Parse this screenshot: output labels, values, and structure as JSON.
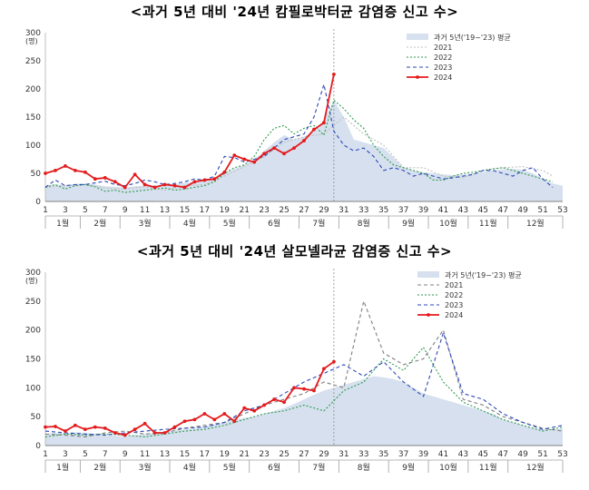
{
  "charts": [
    {
      "title": "<과거 5년 대비 '24년 캄필로박터균 감염증 신고 수>"
    },
    {
      "title": "<과거 5년 대비 '24년 살모넬라균 감염증 신고 수>"
    }
  ],
  "chart_data": [
    {
      "type": "line",
      "title": "<과거 5년 대비 '24년 캄필로박터균 감염증 신고 수>",
      "ylabel": "(명)",
      "ylim": [
        0,
        300
      ],
      "yticks": [
        0,
        50,
        100,
        150,
        200,
        250,
        300
      ],
      "xlim": [
        1,
        53
      ],
      "xticks": [
        1,
        3,
        5,
        7,
        9,
        11,
        13,
        15,
        17,
        19,
        21,
        23,
        25,
        27,
        29,
        31,
        33,
        35,
        37,
        39,
        41,
        43,
        45,
        47,
        49,
        51,
        53
      ],
      "months": [
        {
          "label": "1월",
          "start": 1,
          "end": 4.5
        },
        {
          "label": "2월",
          "start": 4.5,
          "end": 8.5
        },
        {
          "label": "3월",
          "start": 8.5,
          "end": 13.5
        },
        {
          "label": "4월",
          "start": 13.5,
          "end": 17.5
        },
        {
          "label": "5월",
          "start": 17.5,
          "end": 21.5
        },
        {
          "label": "6월",
          "start": 21.5,
          "end": 26.5
        },
        {
          "label": "7월",
          "start": 26.5,
          "end": 30.5
        },
        {
          "label": "8월",
          "start": 30.5,
          "end": 35.5
        },
        {
          "label": "9월",
          "start": 35.5,
          "end": 39.5
        },
        {
          "label": "10월",
          "start": 39.5,
          "end": 43.5
        },
        {
          "label": "11월",
          "start": 43.5,
          "end": 47.5
        },
        {
          "label": "12월",
          "start": 47.5,
          "end": 53
        }
      ],
      "current_week": 30,
      "grid": false,
      "legend_position": "top-right",
      "series": [
        {
          "name": "과거 5년('19~'23) 평균",
          "kind": "area",
          "color": "#d6e0ee",
          "x": [
            1,
            2,
            3,
            4,
            5,
            6,
            7,
            8,
            9,
            10,
            11,
            12,
            13,
            14,
            15,
            16,
            17,
            18,
            19,
            20,
            21,
            22,
            23,
            24,
            25,
            26,
            27,
            28,
            29,
            30,
            31,
            32,
            33,
            34,
            35,
            36,
            37,
            38,
            39,
            40,
            41,
            42,
            43,
            44,
            45,
            46,
            47,
            48,
            49,
            50,
            51,
            52,
            53
          ],
          "values": [
            28,
            30,
            29,
            31,
            32,
            30,
            27,
            26,
            25,
            27,
            28,
            29,
            30,
            31,
            33,
            35,
            37,
            42,
            50,
            58,
            65,
            75,
            90,
            105,
            118,
            110,
            115,
            125,
            145,
            180,
            150,
            110,
            105,
            100,
            95,
            78,
            60,
            55,
            52,
            50,
            48,
            47,
            48,
            50,
            52,
            55,
            57,
            58,
            56,
            50,
            40,
            32,
            28
          ]
        },
        {
          "name": "2021",
          "kind": "line",
          "color": "#bfbfbf",
          "dash": "2,2",
          "x": [
            1,
            3,
            5,
            7,
            9,
            11,
            13,
            15,
            17,
            19,
            21,
            23,
            25,
            27,
            29,
            31,
            33,
            35,
            37,
            39,
            41,
            43,
            45,
            47,
            49,
            51,
            52
          ],
          "values": [
            25,
            28,
            30,
            24,
            22,
            26,
            20,
            28,
            30,
            45,
            62,
            80,
            105,
            115,
            120,
            150,
            120,
            100,
            60,
            60,
            45,
            42,
            55,
            60,
            62,
            55,
            45
          ]
        },
        {
          "name": "2022",
          "kind": "line",
          "color": "#2e9a50",
          "dash": "2,2",
          "x": [
            1,
            2,
            3,
            4,
            5,
            6,
            7,
            8,
            9,
            10,
            11,
            12,
            13,
            14,
            15,
            16,
            17,
            18,
            19,
            20,
            21,
            22,
            23,
            24,
            25,
            26,
            27,
            28,
            29,
            30,
            31,
            32,
            33,
            34,
            35,
            36,
            37,
            38,
            39,
            40,
            41,
            42,
            43,
            44,
            45,
            46,
            47,
            48,
            49,
            50,
            51,
            52
          ],
          "values": [
            25,
            30,
            22,
            28,
            30,
            26,
            18,
            20,
            16,
            18,
            20,
            22,
            24,
            20,
            22,
            25,
            28,
            35,
            50,
            60,
            65,
            80,
            110,
            130,
            135,
            120,
            130,
            135,
            118,
            180,
            165,
            145,
            130,
            100,
            80,
            65,
            60,
            55,
            50,
            38,
            38,
            45,
            50,
            52,
            55,
            58,
            60,
            55,
            50,
            45,
            40,
            35
          ]
        },
        {
          "name": "2023",
          "kind": "line",
          "color": "#2b47b8",
          "dash": "4,3",
          "x": [
            1,
            2,
            3,
            4,
            5,
            6,
            7,
            8,
            9,
            10,
            11,
            12,
            13,
            14,
            15,
            16,
            17,
            18,
            19,
            20,
            21,
            22,
            23,
            24,
            25,
            26,
            27,
            28,
            29,
            30,
            31,
            32,
            33,
            34,
            35,
            36,
            37,
            38,
            39,
            40,
            41,
            42,
            43,
            44,
            45,
            46,
            47,
            48,
            49,
            50,
            51,
            52
          ],
          "values": [
            25,
            38,
            28,
            30,
            30,
            33,
            36,
            30,
            28,
            32,
            38,
            35,
            30,
            32,
            35,
            40,
            38,
            45,
            80,
            78,
            70,
            75,
            80,
            95,
            110,
            115,
            120,
            150,
            208,
            125,
            100,
            90,
            95,
            80,
            55,
            60,
            55,
            45,
            50,
            45,
            40,
            42,
            45,
            48,
            55,
            55,
            50,
            45,
            55,
            60,
            40,
            25
          ]
        },
        {
          "name": "2024",
          "kind": "line",
          "color": "#e41a1c",
          "marker": true,
          "x": [
            1,
            2,
            3,
            4,
            5,
            6,
            7,
            8,
            9,
            10,
            11,
            12,
            13,
            14,
            15,
            16,
            17,
            18,
            19,
            20,
            21,
            22,
            23,
            24,
            25,
            26,
            27,
            28,
            29,
            30
          ],
          "values": [
            50,
            55,
            63,
            55,
            52,
            40,
            42,
            35,
            25,
            48,
            30,
            25,
            30,
            28,
            25,
            35,
            38,
            40,
            52,
            82,
            75,
            70,
            85,
            95,
            85,
            95,
            108,
            128,
            140,
            226
          ]
        }
      ]
    },
    {
      "type": "line",
      "title": "<과거 5년 대비 '24년 살모넬라균 감염증 신고 수>",
      "ylabel": "(명)",
      "ylim": [
        0,
        300
      ],
      "yticks": [
        0,
        50,
        100,
        150,
        200,
        250,
        300
      ],
      "xlim": [
        1,
        53
      ],
      "xticks": [
        1,
        3,
        5,
        7,
        9,
        11,
        13,
        15,
        17,
        19,
        21,
        23,
        25,
        27,
        29,
        31,
        33,
        35,
        37,
        39,
        41,
        43,
        45,
        47,
        49,
        51,
        53
      ],
      "months": [
        {
          "label": "1월",
          "start": 1,
          "end": 4.5
        },
        {
          "label": "2월",
          "start": 4.5,
          "end": 8.5
        },
        {
          "label": "3월",
          "start": 8.5,
          "end": 13.5
        },
        {
          "label": "4월",
          "start": 13.5,
          "end": 17.5
        },
        {
          "label": "5월",
          "start": 17.5,
          "end": 21.5
        },
        {
          "label": "6월",
          "start": 21.5,
          "end": 26.5
        },
        {
          "label": "7월",
          "start": 26.5,
          "end": 30.5
        },
        {
          "label": "8월",
          "start": 30.5,
          "end": 35.5
        },
        {
          "label": "9월",
          "start": 35.5,
          "end": 39.5
        },
        {
          "label": "10월",
          "start": 39.5,
          "end": 43.5
        },
        {
          "label": "11월",
          "start": 43.5,
          "end": 47.5
        },
        {
          "label": "12월",
          "start": 47.5,
          "end": 53
        }
      ],
      "current_week": 30,
      "grid": false,
      "legend_position": "top-right",
      "series": [
        {
          "name": "과거 5년('19~'23) 평균",
          "kind": "area",
          "color": "#d6e0ee",
          "x": [
            1,
            2,
            3,
            4,
            5,
            6,
            7,
            8,
            9,
            10,
            11,
            12,
            13,
            14,
            15,
            16,
            17,
            18,
            19,
            20,
            21,
            22,
            23,
            24,
            25,
            26,
            27,
            28,
            29,
            30,
            31,
            32,
            33,
            34,
            35,
            36,
            37,
            38,
            39,
            40,
            41,
            42,
            43,
            44,
            45,
            46,
            47,
            48,
            49,
            50,
            51,
            52,
            53
          ],
          "values": [
            20,
            22,
            21,
            23,
            22,
            20,
            18,
            17,
            16,
            18,
            20,
            22,
            24,
            26,
            28,
            30,
            33,
            36,
            40,
            45,
            48,
            50,
            55,
            60,
            65,
            72,
            80,
            88,
            95,
            100,
            105,
            110,
            115,
            120,
            118,
            115,
            110,
            100,
            90,
            85,
            80,
            75,
            70,
            65,
            60,
            55,
            45,
            40,
            35,
            30,
            28,
            27,
            30
          ]
        },
        {
          "name": "2021",
          "kind": "line",
          "color": "#7f7f7f",
          "dash": "4,3",
          "x": [
            1,
            3,
            5,
            7,
            9,
            11,
            13,
            15,
            17,
            19,
            21,
            23,
            25,
            27,
            29,
            31,
            33,
            35,
            37,
            39,
            41,
            43,
            45,
            47,
            49,
            51,
            53
          ],
          "values": [
            20,
            18,
            15,
            22,
            25,
            20,
            22,
            30,
            35,
            40,
            55,
            70,
            80,
            90,
            110,
            100,
            250,
            160,
            140,
            150,
            200,
            80,
            70,
            50,
            40,
            30,
            25
          ]
        },
        {
          "name": "2022",
          "kind": "line",
          "color": "#2e9a50",
          "dash": "2,2",
          "x": [
            1,
            3,
            5,
            7,
            9,
            11,
            13,
            15,
            17,
            19,
            21,
            23,
            25,
            27,
            29,
            31,
            33,
            35,
            37,
            39,
            41,
            43,
            45,
            47,
            49,
            51,
            53
          ],
          "values": [
            15,
            20,
            18,
            20,
            18,
            15,
            20,
            25,
            28,
            35,
            45,
            55,
            60,
            70,
            60,
            95,
            110,
            150,
            130,
            170,
            110,
            75,
            60,
            45,
            35,
            25,
            32
          ]
        },
        {
          "name": "2023",
          "kind": "line",
          "color": "#2b47b8",
          "dash": "4,3",
          "x": [
            1,
            3,
            5,
            7,
            9,
            11,
            13,
            15,
            17,
            19,
            21,
            23,
            25,
            27,
            29,
            31,
            33,
            35,
            37,
            39,
            41,
            43,
            45,
            47,
            49,
            51,
            53
          ],
          "values": [
            25,
            22,
            20,
            18,
            22,
            25,
            28,
            30,
            32,
            40,
            60,
            70,
            90,
            110,
            125,
            140,
            120,
            145,
            110,
            85,
            195,
            90,
            80,
            55,
            40,
            28,
            35
          ]
        },
        {
          "name": "2024",
          "kind": "line",
          "color": "#e41a1c",
          "marker": true,
          "x": [
            1,
            2,
            3,
            4,
            5,
            6,
            7,
            8,
            9,
            10,
            11,
            12,
            13,
            14,
            15,
            16,
            17,
            18,
            19,
            20,
            21,
            22,
            23,
            24,
            25,
            26,
            27,
            28,
            29,
            30
          ],
          "values": [
            32,
            33,
            25,
            35,
            28,
            32,
            30,
            22,
            18,
            28,
            38,
            22,
            22,
            32,
            42,
            45,
            55,
            45,
            55,
            42,
            65,
            60,
            70,
            80,
            75,
            100,
            98,
            95,
            133,
            145
          ]
        }
      ]
    }
  ]
}
